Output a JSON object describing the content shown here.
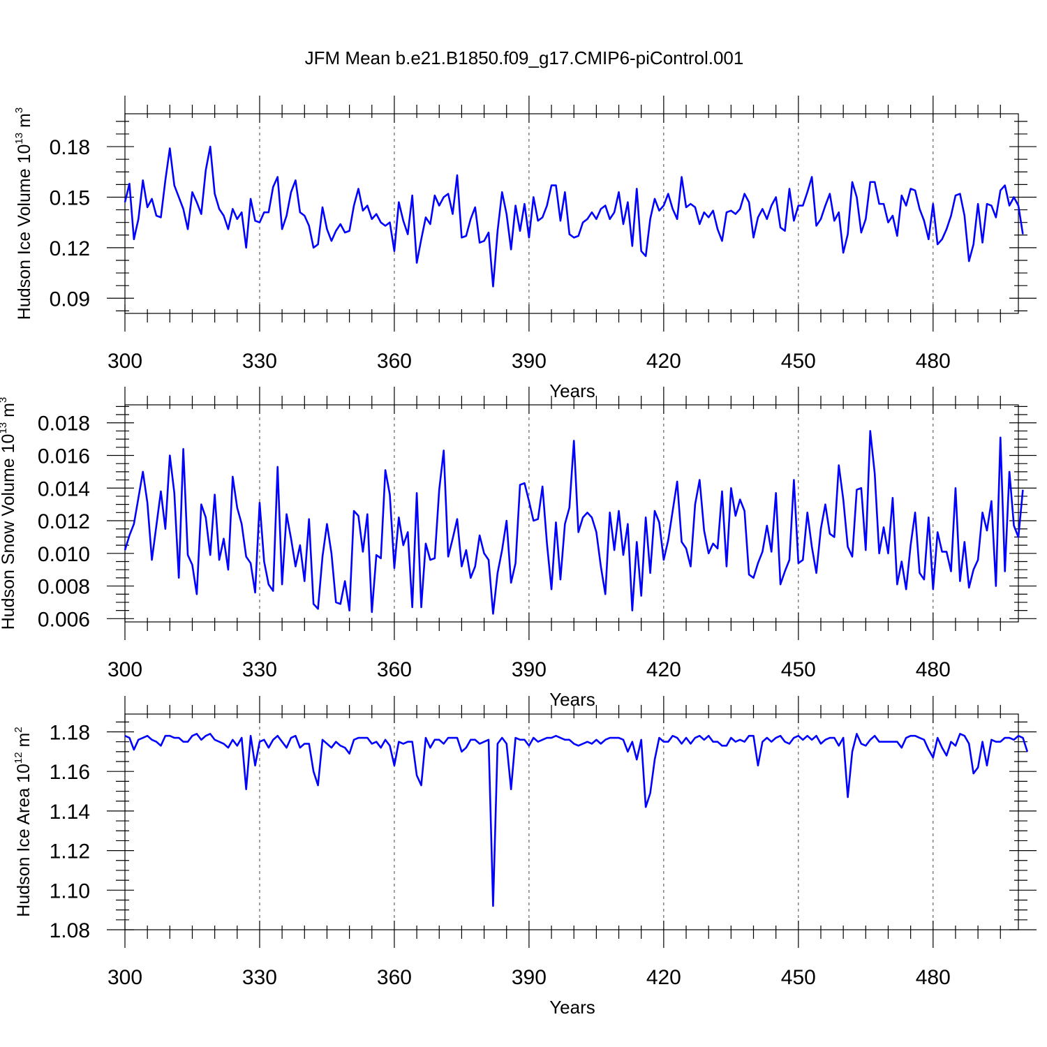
{
  "title": "JFM Mean b.e21.B1850.f09_g17.CMIP6-piControl.001",
  "series_color": "#0000ff",
  "chart_data": [
    {
      "type": "line",
      "name": "Hudson Ice Volume",
      "ylabel": "Hudson Ice Volume 10",
      "ylabel_exp": "13",
      "ylabel_unit": "m",
      "ylabel_unit_exp": "3",
      "xlabel": "Years",
      "xlim": [
        300,
        499
      ],
      "ylim": [
        0.081,
        0.1995
      ],
      "xticks": [
        300,
        330,
        360,
        390,
        420,
        450,
        480
      ],
      "xtick_labels": [
        "300",
        "330",
        "360",
        "390",
        "420",
        "450",
        "480"
      ],
      "yticks": [
        0.09,
        0.12,
        0.15,
        0.18
      ],
      "ytick_labels": [
        "0.09",
        "0.12",
        "0.15",
        "0.18"
      ],
      "grid": "dashed vertical at major x ticks",
      "x_start": 300,
      "values": [
        0.147,
        0.158,
        0.125,
        0.137,
        0.16,
        0.144,
        0.149,
        0.139,
        0.138,
        0.16,
        0.179,
        0.157,
        0.15,
        0.143,
        0.131,
        0.153,
        0.147,
        0.14,
        0.166,
        0.18,
        0.152,
        0.143,
        0.139,
        0.131,
        0.143,
        0.137,
        0.141,
        0.12,
        0.149,
        0.136,
        0.135,
        0.141,
        0.141,
        0.156,
        0.162,
        0.131,
        0.139,
        0.153,
        0.16,
        0.141,
        0.139,
        0.133,
        0.12,
        0.122,
        0.144,
        0.131,
        0.124,
        0.13,
        0.134,
        0.129,
        0.13,
        0.145,
        0.155,
        0.142,
        0.145,
        0.137,
        0.14,
        0.135,
        0.133,
        0.135,
        0.118,
        0.147,
        0.136,
        0.128,
        0.151,
        0.111,
        0.125,
        0.138,
        0.134,
        0.151,
        0.145,
        0.15,
        0.152,
        0.14,
        0.163,
        0.126,
        0.127,
        0.137,
        0.144,
        0.123,
        0.124,
        0.129,
        0.097,
        0.13,
        0.153,
        0.14,
        0.119,
        0.145,
        0.13,
        0.146,
        0.126,
        0.15,
        0.136,
        0.138,
        0.145,
        0.157,
        0.157,
        0.136,
        0.153,
        0.128,
        0.126,
        0.127,
        0.135,
        0.137,
        0.141,
        0.137,
        0.143,
        0.145,
        0.137,
        0.141,
        0.153,
        0.134,
        0.147,
        0.121,
        0.155,
        0.118,
        0.115,
        0.137,
        0.149,
        0.142,
        0.145,
        0.152,
        0.143,
        0.137,
        0.162,
        0.144,
        0.146,
        0.144,
        0.134,
        0.141,
        0.138,
        0.142,
        0.131,
        0.124,
        0.141,
        0.142,
        0.14,
        0.143,
        0.152,
        0.147,
        0.126,
        0.138,
        0.143,
        0.137,
        0.145,
        0.15,
        0.132,
        0.13,
        0.155,
        0.136,
        0.145,
        0.145,
        0.153,
        0.162,
        0.133,
        0.137,
        0.145,
        0.152,
        0.136,
        0.141,
        0.117,
        0.128,
        0.159,
        0.15,
        0.129,
        0.137,
        0.159,
        0.159,
        0.146,
        0.146,
        0.135,
        0.139,
        0.127,
        0.151,
        0.145,
        0.155,
        0.154,
        0.143,
        0.136,
        0.125,
        0.146,
        0.122,
        0.125,
        0.131,
        0.139,
        0.151,
        0.152,
        0.139,
        0.112,
        0.122,
        0.146,
        0.123,
        0.146,
        0.145,
        0.138,
        0.154,
        0.157,
        0.145,
        0.15,
        0.145,
        0.128
      ]
    },
    {
      "type": "line",
      "name": "Hudson Snow Volume",
      "ylabel": "Hudson Snow Volume 10",
      "ylabel_exp": "13",
      "ylabel_unit": "m",
      "ylabel_unit_exp": "3",
      "xlabel": "Years",
      "xlim": [
        300,
        499
      ],
      "ylim": [
        0.0058,
        0.0191
      ],
      "xticks": [
        300,
        330,
        360,
        390,
        420,
        450,
        480
      ],
      "xtick_labels": [
        "300",
        "330",
        "360",
        "390",
        "420",
        "450",
        "480"
      ],
      "yticks": [
        0.006,
        0.008,
        0.01,
        0.012,
        0.014,
        0.016,
        0.018
      ],
      "ytick_labels": [
        "0.006",
        "0.008",
        "0.010",
        "0.012",
        "0.014",
        "0.016",
        "0.018"
      ],
      "grid": "dashed vertical at major x ticks",
      "x_start": 300,
      "values": [
        0.0102,
        0.0111,
        0.0118,
        0.0134,
        0.015,
        0.0131,
        0.0096,
        0.0117,
        0.0138,
        0.0115,
        0.016,
        0.0137,
        0.0085,
        0.0164,
        0.0099,
        0.0093,
        0.0075,
        0.013,
        0.0122,
        0.0099,
        0.0136,
        0.0096,
        0.0109,
        0.009,
        0.0147,
        0.0128,
        0.0118,
        0.0098,
        0.0094,
        0.0076,
        0.0131,
        0.0095,
        0.0081,
        0.0077,
        0.0153,
        0.0081,
        0.0124,
        0.0109,
        0.0092,
        0.0105,
        0.0083,
        0.0121,
        0.0069,
        0.0066,
        0.0098,
        0.0118,
        0.01,
        0.007,
        0.0069,
        0.0083,
        0.0065,
        0.0126,
        0.0123,
        0.0101,
        0.0124,
        0.0064,
        0.0099,
        0.0097,
        0.0151,
        0.0136,
        0.0091,
        0.0122,
        0.0105,
        0.0113,
        0.0067,
        0.0137,
        0.0067,
        0.0106,
        0.0096,
        0.0097,
        0.0139,
        0.0163,
        0.0098,
        0.0109,
        0.0121,
        0.0092,
        0.0102,
        0.0085,
        0.0092,
        0.0111,
        0.01,
        0.0096,
        0.0063,
        0.0088,
        0.0102,
        0.012,
        0.0082,
        0.0094,
        0.0142,
        0.0143,
        0.0132,
        0.012,
        0.0121,
        0.0141,
        0.0106,
        0.0078,
        0.0119,
        0.0084,
        0.0118,
        0.0128,
        0.0169,
        0.0113,
        0.0122,
        0.0125,
        0.0122,
        0.0113,
        0.0092,
        0.0075,
        0.0125,
        0.0102,
        0.0126,
        0.0099,
        0.0118,
        0.0065,
        0.0107,
        0.0074,
        0.0122,
        0.0088,
        0.0126,
        0.0119,
        0.0096,
        0.0108,
        0.0126,
        0.0144,
        0.0107,
        0.0103,
        0.0092,
        0.013,
        0.0145,
        0.0114,
        0.01,
        0.0106,
        0.0103,
        0.0138,
        0.0092,
        0.014,
        0.0123,
        0.0133,
        0.0126,
        0.0087,
        0.0085,
        0.0094,
        0.0101,
        0.0117,
        0.0101,
        0.0137,
        0.0081,
        0.0089,
        0.0096,
        0.0145,
        0.0094,
        0.0096,
        0.0125,
        0.0104,
        0.0088,
        0.0115,
        0.013,
        0.0112,
        0.011,
        0.0154,
        0.0133,
        0.0104,
        0.0098,
        0.0139,
        0.014,
        0.0102,
        0.0175,
        0.0149,
        0.01,
        0.0116,
        0.01,
        0.0134,
        0.0081,
        0.0095,
        0.0078,
        0.0105,
        0.0125,
        0.0088,
        0.0084,
        0.0122,
        0.0078,
        0.0113,
        0.0101,
        0.0101,
        0.0089,
        0.014,
        0.0083,
        0.0107,
        0.0079,
        0.009,
        0.0096,
        0.0125,
        0.0114,
        0.0132,
        0.008,
        0.0171,
        0.0089,
        0.015,
        0.0117,
        0.011,
        0.0139
      ]
    },
    {
      "type": "line",
      "name": "Hudson Ice Area",
      "ylabel": "Hudson Ice Area 10",
      "ylabel_exp": "12",
      "ylabel_unit": "m",
      "ylabel_unit_exp": "2",
      "xlabel": "Years",
      "xlim": [
        300,
        499
      ],
      "ylim": [
        1.08,
        1.189
      ],
      "xticks": [
        300,
        330,
        360,
        390,
        420,
        450,
        480
      ],
      "xtick_labels": [
        "300",
        "330",
        "360",
        "390",
        "420",
        "450",
        "480"
      ],
      "yticks": [
        1.08,
        1.1,
        1.12,
        1.14,
        1.16,
        1.18
      ],
      "ytick_labels": [
        "1.08",
        "1.10",
        "1.12",
        "1.14",
        "1.16",
        "1.18"
      ],
      "grid": "dashed vertical at major x ticks",
      "x_start": 300,
      "values": [
        1.178,
        1.177,
        1.171,
        1.176,
        1.177,
        1.178,
        1.176,
        1.175,
        1.173,
        1.178,
        1.178,
        1.177,
        1.177,
        1.175,
        1.175,
        1.178,
        1.179,
        1.176,
        1.178,
        1.179,
        1.176,
        1.175,
        1.174,
        1.172,
        1.176,
        1.173,
        1.177,
        1.151,
        1.178,
        1.163,
        1.175,
        1.176,
        1.172,
        1.176,
        1.178,
        1.175,
        1.172,
        1.177,
        1.178,
        1.172,
        1.174,
        1.174,
        1.16,
        1.153,
        1.176,
        1.174,
        1.172,
        1.175,
        1.173,
        1.172,
        1.169,
        1.176,
        1.177,
        1.177,
        1.177,
        1.174,
        1.175,
        1.172,
        1.176,
        1.173,
        1.163,
        1.175,
        1.174,
        1.175,
        1.175,
        1.158,
        1.153,
        1.177,
        1.172,
        1.176,
        1.176,
        1.174,
        1.177,
        1.177,
        1.177,
        1.17,
        1.172,
        1.176,
        1.176,
        1.174,
        1.175,
        1.176,
        1.092,
        1.174,
        1.177,
        1.174,
        1.151,
        1.177,
        1.176,
        1.176,
        1.173,
        1.177,
        1.175,
        1.176,
        1.177,
        1.177,
        1.178,
        1.177,
        1.176,
        1.176,
        1.174,
        1.173,
        1.174,
        1.175,
        1.174,
        1.176,
        1.174,
        1.176,
        1.177,
        1.177,
        1.177,
        1.176,
        1.17,
        1.175,
        1.166,
        1.176,
        1.142,
        1.149,
        1.166,
        1.177,
        1.175,
        1.175,
        1.178,
        1.177,
        1.174,
        1.177,
        1.174,
        1.177,
        1.178,
        1.176,
        1.178,
        1.175,
        1.175,
        1.173,
        1.173,
        1.177,
        1.175,
        1.176,
        1.175,
        1.178,
        1.178,
        1.163,
        1.175,
        1.177,
        1.175,
        1.177,
        1.178,
        1.175,
        1.174,
        1.177,
        1.178,
        1.176,
        1.178,
        1.176,
        1.178,
        1.174,
        1.176,
        1.177,
        1.177,
        1.173,
        1.177,
        1.147,
        1.17,
        1.179,
        1.174,
        1.173,
        1.176,
        1.178,
        1.175,
        1.175,
        1.175,
        1.175,
        1.175,
        1.172,
        1.177,
        1.178,
        1.178,
        1.177,
        1.176,
        1.171,
        1.167,
        1.177,
        1.172,
        1.168,
        1.175,
        1.173,
        1.179,
        1.178,
        1.174,
        1.159,
        1.162,
        1.175,
        1.163,
        1.176,
        1.175,
        1.175,
        1.177,
        1.177,
        1.176,
        1.178,
        1.177,
        1.17
      ]
    }
  ]
}
